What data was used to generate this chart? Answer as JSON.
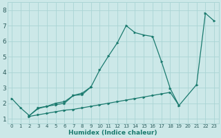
{
  "xlabel": "Humidex (Indice chaleur)",
  "xlim": [
    -0.5,
    23.5
  ],
  "ylim": [
    0.7,
    8.5
  ],
  "yticks": [
    1,
    2,
    3,
    4,
    5,
    6,
    7,
    8
  ],
  "xticks": [
    0,
    1,
    2,
    3,
    4,
    5,
    6,
    7,
    8,
    9,
    10,
    11,
    12,
    13,
    14,
    15,
    16,
    17,
    18,
    19,
    20,
    21,
    22,
    23
  ],
  "background_color": "#cce8e8",
  "grid_color": "#aad4d4",
  "line_color": "#1a7a6e",
  "tick_color": "#2a5a5a",
  "lines": [
    {
      "x": [
        0,
        1,
        2,
        3,
        4,
        5,
        6,
        7,
        8,
        9,
        10,
        11,
        12,
        13,
        14,
        15,
        16,
        17,
        18,
        19,
        21,
        22,
        23
      ],
      "y": [
        2.3,
        1.7,
        1.2,
        1.7,
        1.8,
        2.0,
        2.1,
        2.5,
        2.65,
        3.05,
        4.15,
        5.05,
        5.9,
        7.0,
        6.55,
        6.4,
        6.3,
        4.7,
        2.95,
        1.85,
        3.2,
        7.8,
        7.3
      ]
    },
    {
      "x": [
        2,
        3,
        4,
        5,
        6,
        7,
        8,
        9
      ],
      "y": [
        1.2,
        1.65,
        1.8,
        1.9,
        2.0,
        2.5,
        2.55,
        3.05
      ]
    },
    {
      "x": [
        2,
        3,
        4,
        5,
        6,
        7,
        8,
        9,
        10,
        11,
        12,
        13,
        14,
        15,
        16,
        17,
        18,
        19
      ],
      "y": [
        1.15,
        1.25,
        1.35,
        1.45,
        1.55,
        1.6,
        1.7,
        1.8,
        1.9,
        2.0,
        2.1,
        2.2,
        2.3,
        2.4,
        2.5,
        2.6,
        2.7,
        1.85
      ]
    }
  ]
}
